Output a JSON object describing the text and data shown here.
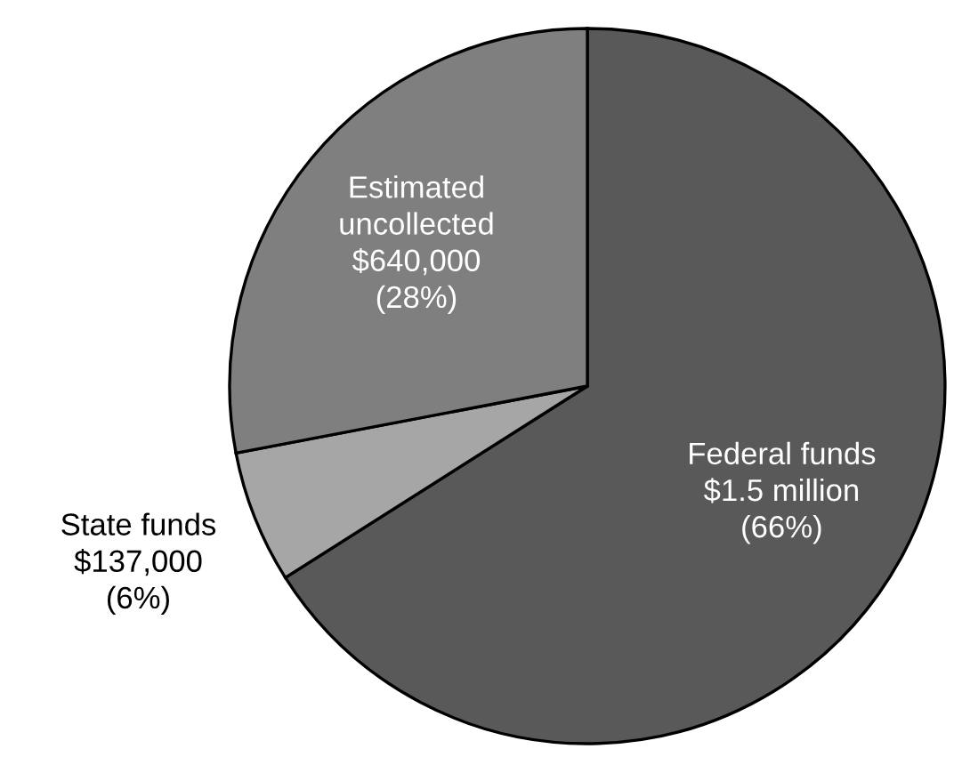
{
  "chart_data": {
    "type": "pie",
    "categories": [
      "Federal funds",
      "State funds",
      "Estimated\nuncollected"
    ],
    "values": [
      66,
      6,
      28
    ],
    "value_labels": [
      "$1.5 million\n(66%)",
      "$137,000\n(6%)",
      "$640,000\n(28%)"
    ],
    "colors": [
      "#595959",
      "#a6a6a6",
      "#7f7f7f"
    ],
    "legend": false
  }
}
